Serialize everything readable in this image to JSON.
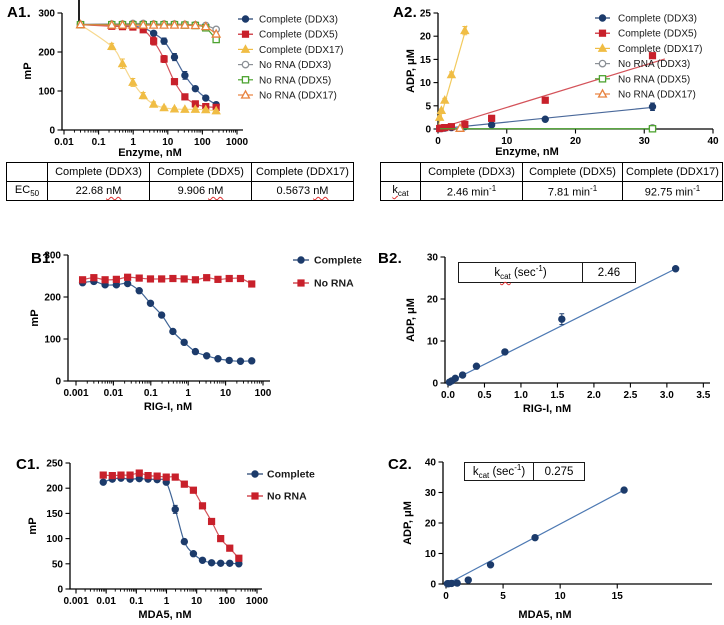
{
  "panels": {
    "a1": "A1.",
    "a2": "A2.",
    "b1": "B1.",
    "b2": "B2.",
    "c1": "C1.",
    "c2": "C2."
  },
  "tables": {
    "ec50": {
      "col_headers": [
        "Complete (DDX3)",
        "Complete (DDX5)",
        "Complete (DDX17)"
      ],
      "row_label_base": "EC",
      "row_label_sub": "50",
      "values": [
        "22.68",
        "9.906",
        "0.5673"
      ],
      "unit": "nM"
    },
    "kcat": {
      "col_headers": [
        "Complete (DDX3)",
        "Complete (DDX5)",
        "Complete (DDX17)"
      ],
      "row_label_base": "k",
      "row_label_sub": "cat",
      "values": [
        "2.46 min",
        "7.81 min",
        "92.75 min"
      ],
      "exp": "-1"
    },
    "inset_b2": {
      "label_base": "k",
      "label_sub": "cat",
      "label_mid": " (sec",
      "label_exp": "-1",
      "label_end": ")",
      "value": "2.46"
    },
    "inset_c2": {
      "label_base": "k",
      "label_sub": "cat",
      "label_mid": " (sec",
      "label_exp": "-1",
      "label_end": ")",
      "value": "0.275"
    }
  },
  "chart_data": [
    {
      "id": "A1",
      "type": "line",
      "xscale": "log",
      "xlim": [
        0.01,
        1000
      ],
      "ylim": [
        0,
        300
      ],
      "xticks": [
        "0.01",
        "0.1",
        "1",
        "10",
        "100",
        "1000"
      ],
      "yticks": [
        0,
        100,
        200,
        300
      ],
      "xlabel": "Enzyme, nM",
      "ylabel": "mP",
      "legend_position": "right",
      "grid": false,
      "series": [
        {
          "name": "Complete (DDX3)",
          "marker": "circle",
          "open": false,
          "color": "#1c3b6b",
          "line_color": "#49689a",
          "line": "through",
          "x": [
            0.03,
            0.24,
            0.49,
            0.98,
            1.95,
            3.9,
            7.8,
            15.6,
            31.2,
            62.5,
            125,
            250
          ],
          "y": [
            270,
            268,
            267,
            266,
            262,
            248,
            228,
            187,
            140,
            106,
            82,
            65
          ],
          "err": [
            0,
            0,
            0,
            0,
            0,
            5,
            8,
            9,
            10,
            6,
            4,
            3
          ]
        },
        {
          "name": "Complete (DDX5)",
          "marker": "square",
          "open": false,
          "color": "#c8202b",
          "line_color": "#d4535a",
          "line": "through",
          "x": [
            0.03,
            0.24,
            0.49,
            0.98,
            1.95,
            3.9,
            7.8,
            15.6,
            31.2,
            62.5,
            125,
            250
          ],
          "y": [
            270,
            266,
            265,
            264,
            257,
            228,
            182,
            124,
            85,
            67,
            60,
            58
          ],
          "err": [
            0,
            0,
            0,
            0,
            4,
            10,
            9,
            6,
            4,
            3,
            0,
            0
          ]
        },
        {
          "name": "Complete (DDX17)",
          "marker": "triangle",
          "open": false,
          "color": "#f0bd45",
          "line_color": "#f7d88d",
          "line": "through",
          "x": [
            0.03,
            0.24,
            0.49,
            0.98,
            1.95,
            3.9,
            7.8,
            15.6,
            31.2,
            62.5,
            125,
            250
          ],
          "y": [
            270,
            214,
            170,
            122,
            88,
            66,
            57,
            54,
            53,
            53,
            52,
            49
          ],
          "err": [
            0,
            8,
            12,
            10,
            8,
            6,
            4,
            3,
            3,
            3,
            3,
            3
          ]
        },
        {
          "name": "No RNA (DDX3)",
          "marker": "circle",
          "open": true,
          "color": "#8b9096",
          "line": "through",
          "x": [
            0.03,
            0.24,
            0.49,
            0.98,
            1.95,
            3.9,
            7.8,
            15.6,
            31.2,
            62.5,
            125,
            250
          ],
          "y": [
            271,
            272,
            272,
            273,
            273,
            272,
            272,
            272,
            271,
            270,
            268,
            258
          ]
        },
        {
          "name": "No RNA (DDX5)",
          "marker": "square",
          "open": true,
          "color": "#4da330",
          "line": "through",
          "x": [
            0.03,
            0.24,
            0.49,
            0.98,
            1.95,
            3.9,
            7.8,
            15.6,
            31.2,
            62.5,
            125,
            250
          ],
          "y": [
            270,
            270,
            270,
            270,
            270,
            270,
            270,
            270,
            269,
            268,
            262,
            232
          ]
        },
        {
          "name": "No RNA (DDX17)",
          "marker": "triangle",
          "open": true,
          "color": "#e8823e",
          "line": "through",
          "x": [
            0.03,
            0.24,
            0.49,
            0.98,
            1.95,
            3.9,
            7.8,
            15.6,
            31.2,
            62.5,
            125,
            250
          ],
          "y": [
            270,
            269,
            269,
            269,
            269,
            269,
            269,
            269,
            269,
            268,
            265,
            246
          ]
        }
      ]
    },
    {
      "id": "A2",
      "type": "scatter",
      "xscale": "linear",
      "xlim": [
        0,
        40
      ],
      "ylim": [
        0,
        25
      ],
      "xticks": [
        "0",
        "10",
        "20",
        "30",
        "40"
      ],
      "yticks": [
        0,
        5,
        10,
        15,
        20,
        25
      ],
      "xlabel": "Enzyme, nM",
      "ylabel": "ADP, μM",
      "legend_position": "right",
      "grid": false,
      "series": [
        {
          "name": "Complete (DDX3)",
          "marker": "circle",
          "open": false,
          "color": "#1c3b6b",
          "line_color": "#49689a",
          "fit": [
            [
              0,
              0
            ],
            [
              31.5,
              4.7
            ]
          ],
          "x": [
            0.24,
            0.49,
            0.98,
            1.95,
            3.9,
            7.8,
            15.6,
            31.2
          ],
          "y": [
            0.1,
            0.1,
            0.2,
            0.3,
            0.5,
            0.9,
            2.1,
            4.8
          ],
          "err": [
            0,
            0,
            0,
            0,
            0,
            0,
            0,
            0.8
          ]
        },
        {
          "name": "Complete (DDX5)",
          "marker": "square",
          "open": false,
          "color": "#c8202b",
          "line_color": "#d4535a",
          "fit": [
            [
              0,
              0.1
            ],
            [
              33,
              15.1
            ]
          ],
          "x": [
            0.24,
            0.49,
            0.98,
            1.95,
            3.9,
            7.8,
            15.6,
            31.2
          ],
          "y": [
            0.1,
            0.2,
            0.3,
            0.5,
            1.0,
            2.3,
            6.2,
            15.8
          ]
        },
        {
          "name": "Complete (DDX17)",
          "marker": "triangle",
          "open": false,
          "color": "#f0bd45",
          "line_color": "#f2ca5e",
          "fit": [
            [
              0.1,
              1.0
            ],
            [
              4.2,
              22.3
            ]
          ],
          "x": [
            0.24,
            0.49,
            0.98,
            1.95,
            3.9
          ],
          "y": [
            2.5,
            4.0,
            6.2,
            11.7,
            21.2
          ],
          "err": [
            0.3,
            0.3,
            0.4,
            0.6,
            0.9
          ]
        },
        {
          "name": "No RNA (DDX3)",
          "marker": "circle",
          "open": true,
          "color": "#8b9096",
          "line": "none",
          "x": [
            31.2
          ],
          "y": [
            0.25
          ]
        },
        {
          "name": "No RNA (DDX5)",
          "marker": "square",
          "open": true,
          "color": "#4da330",
          "fit": [
            [
              0.3,
              0.05
            ],
            [
              31.2,
              0.05
            ]
          ],
          "x": [
            31.2
          ],
          "y": [
            0.05
          ]
        },
        {
          "name": "No RNA (DDX17)",
          "marker": "triangle",
          "open": true,
          "color": "#e8823e",
          "line": "none",
          "x": [
            3.2
          ],
          "y": [
            0.15
          ]
        }
      ]
    },
    {
      "id": "B1",
      "type": "line",
      "xscale": "log",
      "xlim": [
        0.001,
        100
      ],
      "ylim": [
        0,
        300
      ],
      "xticks": [
        "0.001",
        "0.01",
        "0.1",
        "1",
        "10",
        "100"
      ],
      "yticks": [
        0,
        100,
        200,
        300
      ],
      "xlabel": "RIG-I, nM",
      "ylabel": "mP",
      "legend_position": "right",
      "grid": false,
      "series": [
        {
          "name": "Complete",
          "marker": "circle",
          "open": false,
          "color": "#1c3b6b",
          "line_color": "#3f6496",
          "line": "through",
          "x": [
            0.0015,
            0.003,
            0.006,
            0.012,
            0.024,
            0.049,
            0.098,
            0.195,
            0.39,
            0.78,
            1.56,
            3.12,
            6.25,
            12.5,
            25,
            50
          ],
          "y": [
            234,
            237,
            229,
            229,
            232,
            215,
            185,
            157,
            118,
            92,
            70,
            60,
            53,
            49,
            47,
            48
          ]
        },
        {
          "name": "No RNA",
          "marker": "square",
          "open": false,
          "color": "#c8202b",
          "line_color": "#d4535a",
          "line": "through",
          "x": [
            0.0015,
            0.003,
            0.006,
            0.012,
            0.024,
            0.049,
            0.098,
            0.195,
            0.39,
            0.78,
            1.56,
            3.12,
            6.25,
            12.5,
            25,
            50
          ],
          "y": [
            241,
            246,
            241,
            242,
            247,
            245,
            243,
            243,
            244,
            243,
            241,
            246,
            242,
            244,
            244,
            231
          ]
        }
      ]
    },
    {
      "id": "B2",
      "type": "scatter",
      "xscale": "linear",
      "xlim": [
        0,
        3.55
      ],
      "ylim": [
        0,
        30
      ],
      "xticks": [
        "0.0",
        "0.5",
        "1.0",
        "1.5",
        "2.0",
        "2.5",
        "3.0",
        "3.5"
      ],
      "yticks": [
        0,
        10,
        20,
        30
      ],
      "xlabel": "RIG-I, nM",
      "ylabel": "ADP, μM",
      "legend_position": "none",
      "grid": false,
      "series": [
        {
          "name": "Complete",
          "marker": "circle",
          "open": false,
          "color": "#1c3b6b",
          "line_color": "#4d79b3",
          "fit": [
            [
              0,
              0.1
            ],
            [
              3.12,
              27.2
            ]
          ],
          "x": [
            0.02,
            0.05,
            0.1,
            0.2,
            0.39,
            0.78,
            1.56,
            3.12
          ],
          "y": [
            0.2,
            0.5,
            1.1,
            1.9,
            4.0,
            7.4,
            15.2,
            27.2
          ],
          "err": [
            0,
            0,
            0,
            0,
            0,
            0,
            1.3,
            0
          ]
        }
      ]
    },
    {
      "id": "C1",
      "type": "line",
      "xscale": "log",
      "xlim": [
        0.001,
        1000
      ],
      "ylim": [
        0,
        250
      ],
      "xticks": [
        "0.001",
        "0.01",
        "0.1",
        "1",
        "10",
        "100",
        "1000"
      ],
      "yticks": [
        0,
        50,
        100,
        150,
        200,
        250
      ],
      "xlabel": "MDA5, nM",
      "ylabel": "mP",
      "legend_position": "right",
      "grid": false,
      "series": [
        {
          "name": "Complete",
          "marker": "circle",
          "open": false,
          "color": "#1c3b6b",
          "line_color": "#3f6496",
          "line": "through",
          "x": [
            0.008,
            0.016,
            0.031,
            0.062,
            0.125,
            0.245,
            0.49,
            0.98,
            1.95,
            3.9,
            7.8,
            15.6,
            31.2,
            62.5,
            125,
            250
          ],
          "y": [
            212,
            218,
            220,
            218,
            219,
            218,
            217,
            212,
            158,
            94,
            70,
            57,
            52,
            51,
            51,
            50
          ],
          "err": [
            0,
            0,
            0,
            0,
            0,
            0,
            0,
            5,
            8,
            5,
            0,
            0,
            0,
            0,
            0,
            0
          ]
        },
        {
          "name": "No RNA",
          "marker": "square",
          "open": false,
          "color": "#c8202b",
          "line_color": "#d4535a",
          "line": "through",
          "x": [
            0.008,
            0.016,
            0.031,
            0.062,
            0.125,
            0.245,
            0.49,
            0.98,
            1.95,
            3.9,
            7.8,
            15.6,
            31.2,
            62.5,
            125,
            250
          ],
          "y": [
            226,
            225,
            226,
            226,
            230,
            225,
            224,
            222,
            222,
            208,
            196,
            165,
            134,
            100,
            81,
            61
          ]
        }
      ]
    },
    {
      "id": "C2",
      "type": "scatter",
      "xscale": "linear",
      "xlim": [
        0,
        23.3
      ],
      "ylim": [
        0,
        40
      ],
      "xticks": [
        "0",
        "5",
        "10",
        "15"
      ],
      "yticks": [
        0,
        10,
        20,
        30,
        40
      ],
      "xlabel": "MDA5, nM",
      "ylabel": "ADP, μM",
      "legend_position": "none",
      "grid": false,
      "series": [
        {
          "name": "Complete",
          "marker": "circle",
          "open": false,
          "color": "#1c3b6b",
          "line_color": "#4d79b3",
          "fit": [
            [
              0.2,
              0.2
            ],
            [
              15.6,
              30.8
            ]
          ],
          "x": [
            0.12,
            0.24,
            0.49,
            0.98,
            1.95,
            3.9,
            7.8,
            15.6
          ],
          "y": [
            0.1,
            0.1,
            0.2,
            0.3,
            1.3,
            6.3,
            15.2,
            30.8
          ]
        }
      ]
    }
  ]
}
